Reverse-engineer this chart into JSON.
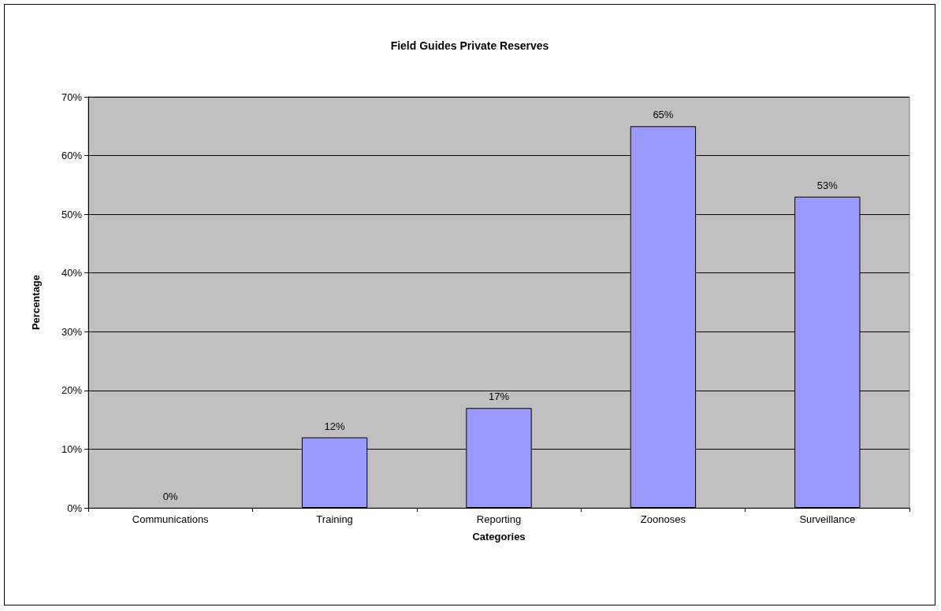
{
  "chart_data": {
    "type": "bar",
    "title": "Field Guides Private Reserves",
    "xlabel": "Categories",
    "ylabel": "Percentage",
    "categories": [
      "Communications",
      "Training",
      "Reporting",
      "Zoonoses",
      "Surveillance"
    ],
    "values": [
      0,
      12,
      17,
      65,
      53
    ],
    "value_labels": [
      "0%",
      "12%",
      "17%",
      "65%",
      "53%"
    ],
    "color": "#9999ff",
    "ylim": [
      0,
      70
    ],
    "yticks": [
      {
        "value": 0,
        "label": "0%"
      },
      {
        "value": 10,
        "label": "10%"
      },
      {
        "value": 20,
        "label": "20%"
      },
      {
        "value": 30,
        "label": "30%"
      },
      {
        "value": 40,
        "label": "40%"
      },
      {
        "value": 50,
        "label": "50%"
      },
      {
        "value": 60,
        "label": "60%"
      },
      {
        "value": 70,
        "label": "70%"
      }
    ],
    "grid": "y"
  }
}
